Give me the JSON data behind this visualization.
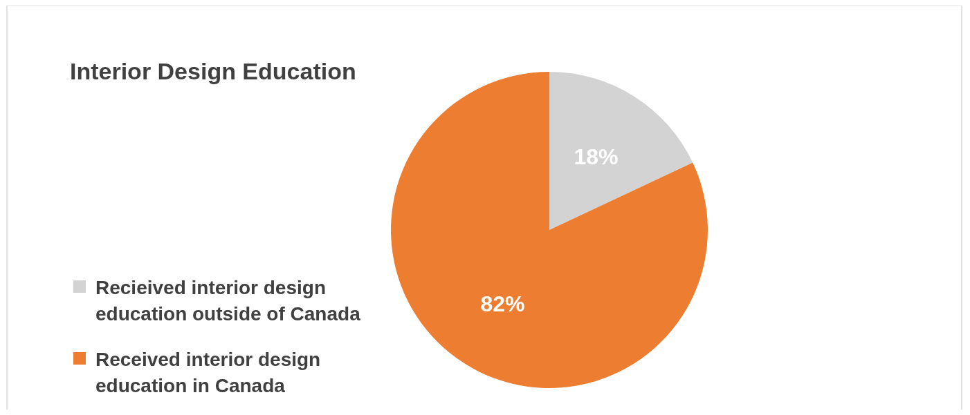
{
  "chart_data": {
    "type": "pie",
    "title": "Interior Design Education",
    "categories": [
      "Recieived interior design education outside of Canada",
      "Received interior design education in Canada"
    ],
    "values": [
      18,
      82
    ],
    "colors": [
      "#d3d3d3",
      "#ed7d31"
    ],
    "value_labels": [
      "18%",
      "82%"
    ],
    "legend": "left"
  }
}
